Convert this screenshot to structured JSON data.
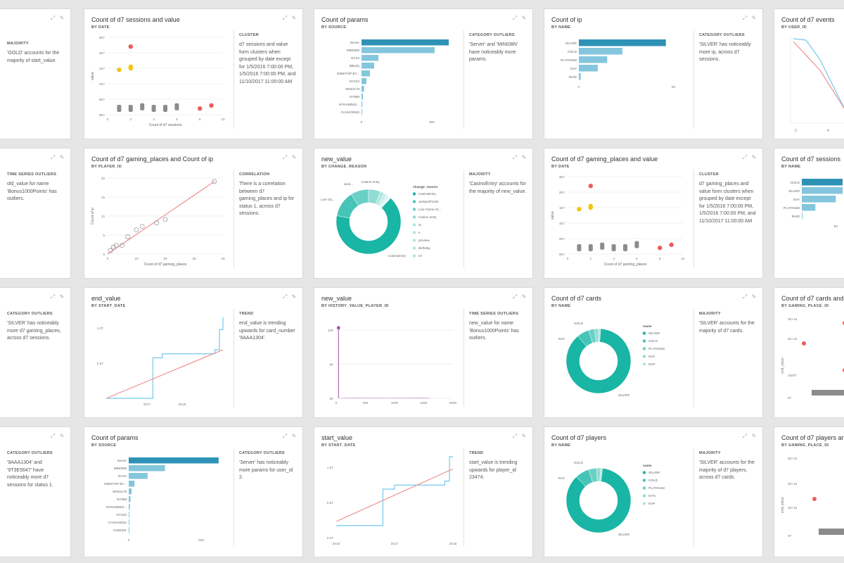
{
  "colors": {
    "bar": "#2e92b6",
    "bar_light": "#83c6dd",
    "teal": "#19b5a5",
    "red": "#ec5c5c",
    "yellow": "#f1c40f",
    "gray": "#8c8c8c",
    "trend": "#ef8f8f",
    "line": "#74c8ef",
    "purple": "#a153a7"
  },
  "icons": {
    "expand": "expand-icon",
    "pin": "pin-icon"
  },
  "cards": {
    "r0c0": {
      "insight_head": "MAJORITY",
      "insight": "'GOLD' accounts for the majority of start_value."
    },
    "r0c1": {
      "title": "Count of d7 sessions and value",
      "sub": "BY DATE",
      "insight_head": "CLUSTER",
      "insight": "d7 sessions and value form clusters when grouped by date except for 1/5/2016 7:00:00 PM, 1/5/2016 7:00:00 PM, and 11/10/2017 11:00:00 AM",
      "chart_data": {
        "type": "scatter",
        "xlabel": "Count of d7 sessions",
        "ylabel": "value",
        "x_ticks": [
          "0",
          "2",
          "4",
          "6",
          "8",
          "10"
        ],
        "y_ticks": [
          "3E7",
          "2E7",
          "1E7",
          "1E7",
          "0E7",
          "0E7"
        ],
        "points": [
          {
            "x": 2,
            "y": 0.88,
            "c": "red"
          },
          {
            "x": 1,
            "y": 0.58,
            "c": "yellow"
          },
          {
            "x": 2,
            "y": 0.6,
            "c": "yellow"
          },
          {
            "x": 2,
            "y": 0.62,
            "c": "yellow"
          },
          {
            "x": 1,
            "y": 0.1,
            "c": "gray"
          },
          {
            "x": 2,
            "y": 0.1,
            "c": "gray"
          },
          {
            "x": 3,
            "y": 0.12,
            "c": "gray"
          },
          {
            "x": 4,
            "y": 0.1,
            "c": "gray"
          },
          {
            "x": 5,
            "y": 0.1,
            "c": "gray"
          },
          {
            "x": 6,
            "y": 0.12,
            "c": "gray"
          },
          {
            "x": 8,
            "y": 0.08,
            "c": "red"
          },
          {
            "x": 9,
            "y": 0.12,
            "c": "red"
          }
        ]
      }
    },
    "r0c2": {
      "title": "Count of params",
      "sub": "BY SOURCE",
      "insight_head": "CATEGORY OUTLIERS",
      "insight": "'Server' and 'MINI08N' have noticeably more params.",
      "chart_data": {
        "type": "bar",
        "categories": [
          "Server",
          "MINI08N",
          "NYS4",
          "(Blank)",
          "D68KTOP-B7...",
          "NYS42",
          "MINI1178",
          "NY888",
          "NYNAB9W2...",
          "CASHO0932"
        ],
        "values": [
          620,
          520,
          120,
          90,
          60,
          35,
          18,
          10,
          6,
          4
        ],
        "x_ticks": [
          "0",
          "500"
        ],
        "xmax": 650
      }
    },
    "r0c3": {
      "title": "Count of ip",
      "sub": "BY NAME",
      "insight_head": "CATEGORY OUTLIERS",
      "insight": "'SILVER' has noticeably more ip, across d7 sessions.",
      "chart_data": {
        "type": "bar",
        "categories": [
          "SILVER",
          "GOLD",
          "PLATINUM",
          "NAV",
          "RHID"
        ],
        "values": [
          46,
          23,
          15,
          10,
          1
        ],
        "x_ticks": [
          "0",
          "50"
        ],
        "xmax": 55
      }
    },
    "r0c4": {
      "title": "Count of d7 events",
      "sub": "BY USER_ID",
      "x_ticks": [
        "2",
        "4"
      ]
    },
    "r1c0": {
      "insight_head": "TIME SERIES OUTLIERS",
      "insight": "old_value for name 'Bonus1000Points' has outliers."
    },
    "r1c1": {
      "title": "Count of d7 gaming_places and Count of ip",
      "sub": "BY PLAYER_ID",
      "insight_head": "CORRELATION",
      "insight": "There is a correlation between d7 gaming_places and ip for status 1, across d7 sessions.",
      "chart_data": {
        "type": "scatter",
        "xlabel": "Count of d7 gaming_places",
        "ylabel": "Count of ip",
        "x_ticks": [
          "0",
          "10",
          "20",
          "30",
          "40"
        ],
        "y_ticks": [
          "20",
          "15",
          "10",
          "5",
          "0"
        ],
        "xmax": 40,
        "ymax": 22,
        "points": [
          [
            1,
            1
          ],
          [
            2,
            2
          ],
          [
            3,
            2.5
          ],
          [
            5,
            2.5
          ],
          [
            7,
            5
          ],
          [
            10,
            7
          ],
          [
            12,
            8
          ],
          [
            17,
            9
          ],
          [
            20,
            10
          ],
          [
            37,
            21
          ]
        ]
      }
    },
    "r1c2": {
      "title": "new_value",
      "sub": "BY CHANGE_REASON",
      "insight_head": "MAJORITY",
      "insight": "'CasinoEntry' accounts for the majority of new_value.",
      "legend_title": "change_reason",
      "chart_data": {
        "type": "pie",
        "labels": [
          "CasinoEntry",
          "JackpotPoints",
          "Line Game Sc...",
          "Casino entry",
          "sc",
          "e",
          "preview",
          "Birthday",
          "ml"
        ],
        "values": [
          66,
          13,
          9,
          6,
          2,
          1.5,
          1,
          1,
          0.5
        ],
        "callouts": [
          "CasinoEntry",
          "Jack...",
          "Line Ga...",
          "Casino entry"
        ]
      }
    },
    "r1c3": {
      "title": "Count of d7 gaming_places and value",
      "sub": "BY DATE",
      "insight_head": "CLUSTER",
      "insight": "d7 gaming_places and value form clusters when grouped by date except for 1/5/2016 7:00:00 PM, 1/5/2016 7:00:00 PM, and 11/10/2017 11:00:00 AM",
      "chart_data": {
        "type": "scatter",
        "xlabel": "Count of d7 gaming_places",
        "ylabel": "value",
        "x_ticks": [
          "0",
          "2",
          "4",
          "6",
          "8",
          "10"
        ],
        "y_ticks": [
          "3E7",
          "2E7",
          "1E7",
          "1E7",
          "0E7",
          "0E7"
        ],
        "points": [
          {
            "x": 2,
            "y": 0.88,
            "c": "red"
          },
          {
            "x": 1,
            "y": 0.58,
            "c": "yellow"
          },
          {
            "x": 2,
            "y": 0.6,
            "c": "yellow"
          },
          {
            "x": 2,
            "y": 0.62,
            "c": "yellow"
          },
          {
            "x": 1,
            "y": 0.1,
            "c": "gray"
          },
          {
            "x": 2,
            "y": 0.1,
            "c": "gray"
          },
          {
            "x": 3,
            "y": 0.12,
            "c": "gray"
          },
          {
            "x": 4,
            "y": 0.1,
            "c": "gray"
          },
          {
            "x": 5,
            "y": 0.1,
            "c": "gray"
          },
          {
            "x": 6,
            "y": 0.14,
            "c": "gray"
          },
          {
            "x": 8,
            "y": 0.08,
            "c": "red"
          },
          {
            "x": 9,
            "y": 0.12,
            "c": "red"
          }
        ]
      }
    },
    "r1c4": {
      "title": "Count of d7 sessions",
      "sub": "BY NAME",
      "categories": [
        "GOLD",
        "SILVER",
        "NAV",
        "PLATINUM",
        "RHID"
      ],
      "values": [
        60,
        60,
        50,
        20,
        0
      ],
      "x_ticks": [
        "50"
      ]
    },
    "r2c0": {
      "insight_head": "CATEGORY OUTLIERS",
      "insight": "'SILVER' has noticeably more d7 gaming_places, across d7 sessions."
    },
    "r2c1": {
      "title": "end_value",
      "sub": "BY START_DATE",
      "insight_head": "TREND",
      "insight": "end_value is trending upwards for card_number '9AAA1304'.",
      "chart_data": {
        "type": "line",
        "x_ticks": [
          "2017",
          "2018"
        ],
        "y_ticks": [
          "1.0T",
          "0.5T"
        ],
        "series": [
          {
            "values": [
              [
                0,
                0
              ],
              [
                0.4,
                0
              ],
              [
                0.4,
                0.5
              ],
              [
                0.48,
                0.5
              ],
              [
                0.48,
                0.55
              ],
              [
                0.93,
                0.55
              ],
              [
                0.93,
                0.6
              ],
              [
                0.97,
                0.6
              ],
              [
                0.97,
                0.85
              ],
              [
                1,
                0.85
              ],
              [
                1,
                1
              ]
            ]
          }
        ],
        "trend": [
          [
            0,
            0
          ],
          [
            1,
            0.6
          ]
        ]
      }
    },
    "r2c2": {
      "title": "new_value",
      "sub": "BY HISTORY_VALUE_PLAYER_ID",
      "insight_head": "TIME SERIES OUTLIERS",
      "insight": "new_value for name 'Bonus1000Points' has outliers.",
      "chart_data": {
        "type": "line",
        "x_ticks": [
          "0",
          "500",
          "1000",
          "1500",
          "2000"
        ],
        "y_ticks": [
          "10K",
          "5K",
          "0K"
        ],
        "spike": {
          "x": 40,
          "y": 10500
        },
        "xmax": 2000,
        "ymax": 11000
      }
    },
    "r2c3": {
      "title": "Count of d7 cards",
      "sub": "BY NAME",
      "insight_head": "MAJORITY",
      "insight": "'SILVER' accounts for the majority of d7 cards.",
      "legend_title": "name",
      "chart_data": {
        "type": "pie",
        "labels": [
          "SILVER",
          "GOLD",
          "PLATINUM",
          "NAV",
          "NAP"
        ],
        "values": [
          88,
          6,
          3,
          2,
          1
        ],
        "callouts": [
          "SILVER",
          "GOLD",
          "NAV"
        ]
      }
    },
    "r2c4": {
      "title": "Count of d7 cards and end_value",
      "sub": "BY GAMING_PLACE_ID",
      "ylabel": "end_value",
      "y_ticks": [
        "3E+15",
        "2E+15",
        "1000T",
        "0T"
      ]
    },
    "r3c0": {
      "insight_head": "CATEGORY OUTLIERS",
      "insight": "'9AAA1304' and '9T3E5647' have noticeably more d7 sessions for status 1."
    },
    "r3c1": {
      "title": "Count of params",
      "sub": "BY SOURCE",
      "insight_head": "CATEGORY OUTLIERS",
      "insight": "'Server' has noticeably more params for user_id 2.",
      "chart_data": {
        "type": "bar",
        "categories": [
          "Server",
          "MINI08N",
          "NYS4",
          "D68KTOP-B7...",
          "MINI1178",
          "NY888",
          "NYNAB9W2...",
          "NYS42",
          "CASHO0932",
          "AAB0301"
        ],
        "values": [
          620,
          250,
          130,
          40,
          20,
          12,
          8,
          5,
          4,
          3
        ],
        "x_ticks": [
          "0",
          "500"
        ],
        "xmax": 650
      }
    },
    "r3c2": {
      "title": "start_value",
      "sub": "BY START_DATE",
      "insight_head": "TREND",
      "insight": "start_value is trending upwards for player_id 23474.",
      "chart_data": {
        "type": "line",
        "x_ticks": [
          "2016",
          "2017",
          "2018"
        ],
        "y_ticks": [
          "1.0T",
          "0.5T",
          "0.0T"
        ],
        "series": [
          {
            "values": [
              [
                0,
                0.15
              ],
              [
                0.4,
                0.15
              ],
              [
                0.4,
                0.6
              ],
              [
                0.5,
                0.6
              ],
              [
                0.5,
                0.65
              ],
              [
                0.93,
                0.65
              ],
              [
                0.93,
                0.7
              ],
              [
                0.97,
                0.7
              ],
              [
                0.97,
                1
              ],
              [
                1,
                1
              ]
            ]
          }
        ],
        "trend": [
          [
            0,
            0.2
          ],
          [
            1,
            0.85
          ]
        ]
      }
    },
    "r3c3": {
      "title": "Count of d7 players",
      "sub": "BY NAME",
      "insight_head": "MAJORITY",
      "insight": "'SILVER' accounts for the majority of d7 players, across d7 cards.",
      "legend_title": "name",
      "chart_data": {
        "type": "pie",
        "labels": [
          "SILVER",
          "GOLD",
          "PLATINUM",
          "NYN",
          "NAP"
        ],
        "values": [
          86,
          7,
          4,
          2,
          1
        ],
        "callouts": [
          "SILVER",
          "GOLD",
          "NAV"
        ]
      }
    },
    "r3c4": {
      "title": "Count of d7 players and end_value",
      "sub": "BY GAMING_PLACE_ID",
      "ylabel": "end_value",
      "y_ticks": [
        "3E+15",
        "2E+15",
        "1E+15",
        "0T"
      ]
    }
  }
}
